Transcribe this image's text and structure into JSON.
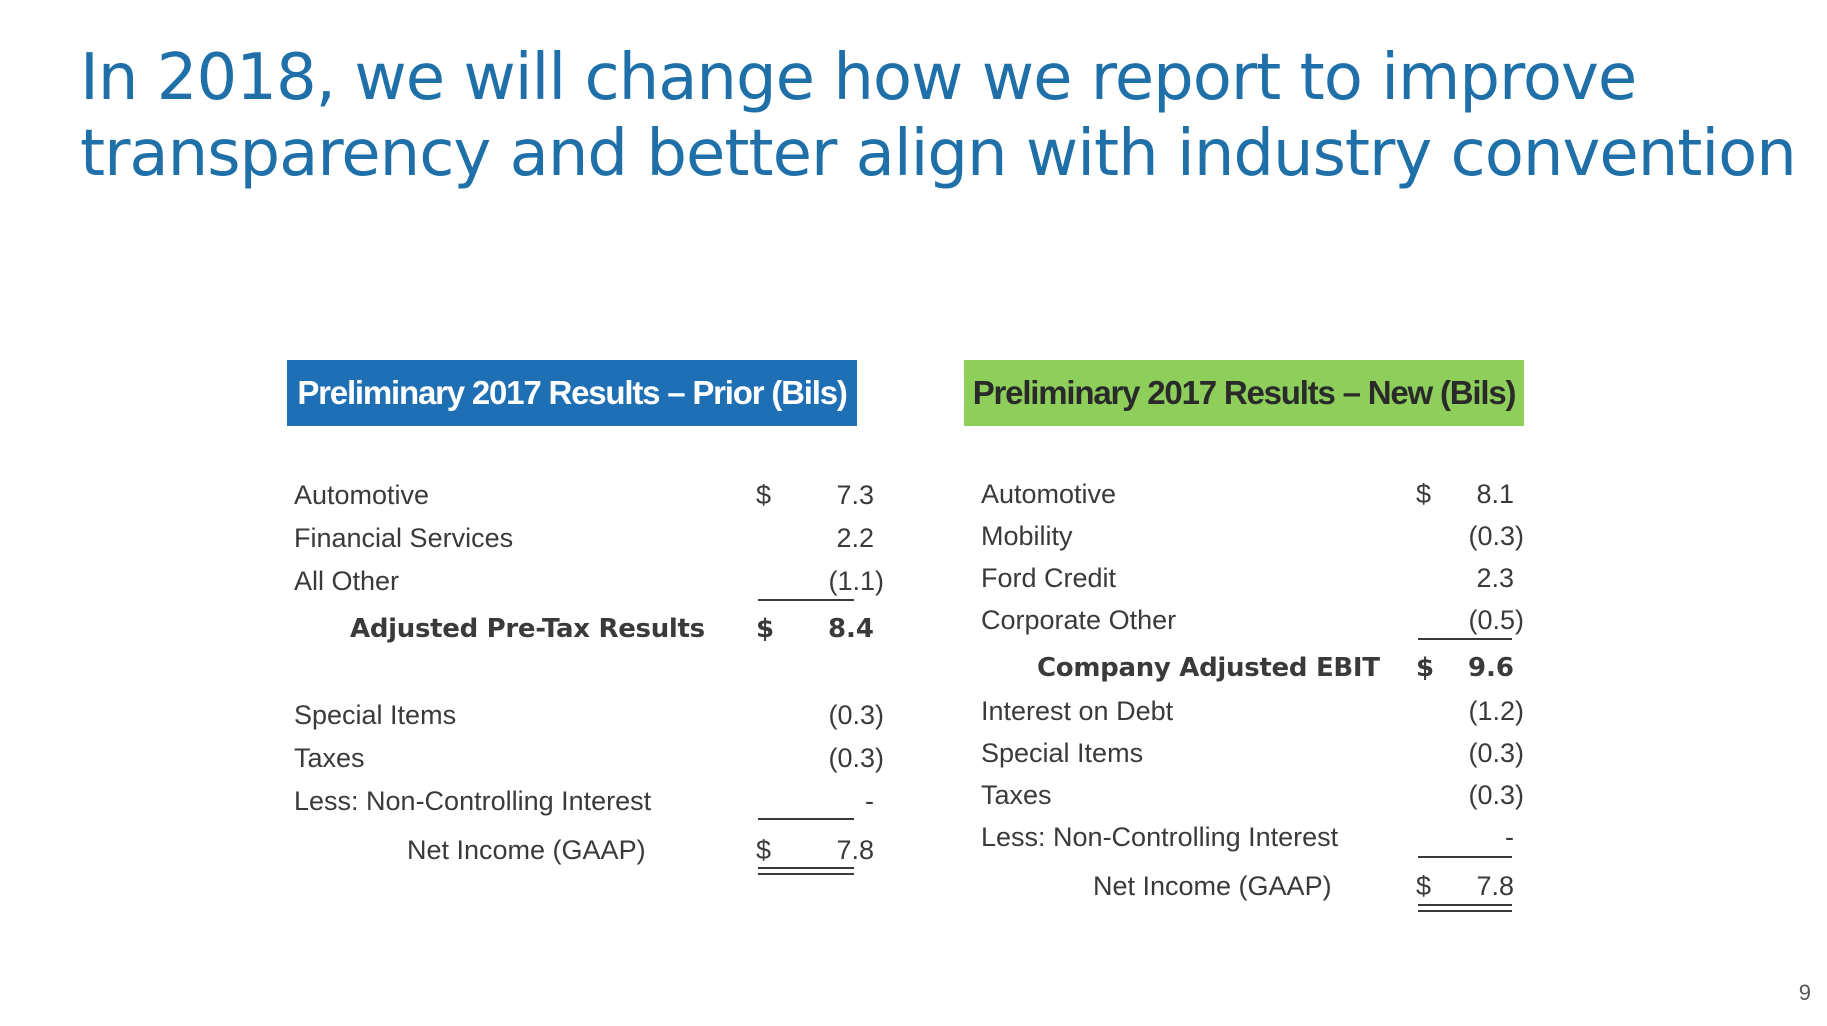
{
  "title": {
    "line1": "In 2018, we will change how we report to improve",
    "line2": "transparency and better align with industry convention"
  },
  "prior": {
    "header": "Preliminary 2017 Results – Prior (Bils)",
    "header_color": "#1f6fb5",
    "rows": [
      {
        "label": "Automotive",
        "dollar": "$",
        "value": "7.3"
      },
      {
        "label": "Financial Services",
        "dollar": "",
        "value": "2.2"
      },
      {
        "label": "All Other",
        "dollar": "",
        "value": "(1.1)"
      },
      {
        "label": "Adjusted Pre-Tax Results",
        "dollar": "$",
        "value": "8.4"
      },
      {
        "label": "Special Items",
        "dollar": "",
        "value": "(0.3)"
      },
      {
        "label": "Taxes",
        "dollar": "",
        "value": "(0.3)"
      },
      {
        "label": "Less: Non-Controlling Interest",
        "dollar": "",
        "value": "-"
      },
      {
        "label": "Net Income (GAAP)",
        "dollar": "$",
        "value": "7.8"
      }
    ]
  },
  "new": {
    "header": "Preliminary 2017 Results – New (Bils)",
    "header_color": "#8dcf5a",
    "rows": [
      {
        "label": "Automotive",
        "dollar": "$",
        "value": "8.1"
      },
      {
        "label": "Mobility",
        "dollar": "",
        "value": "(0.3)"
      },
      {
        "label": "Ford Credit",
        "dollar": "",
        "value": "2.3"
      },
      {
        "label": "Corporate Other",
        "dollar": "",
        "value": "(0.5)"
      },
      {
        "label": "Company Adjusted EBIT",
        "dollar": "$",
        "value": "9.6"
      },
      {
        "label": "Interest on Debt",
        "dollar": "",
        "value": "(1.2)"
      },
      {
        "label": "Special Items",
        "dollar": "",
        "value": "(0.3)"
      },
      {
        "label": "Taxes",
        "dollar": "",
        "value": "(0.3)"
      },
      {
        "label": "Less: Non-Controlling Interest",
        "dollar": "",
        "value": "-"
      },
      {
        "label": "Net Income (GAAP)",
        "dollar": "$",
        "value": "7.8"
      }
    ]
  },
  "page_number": "9"
}
